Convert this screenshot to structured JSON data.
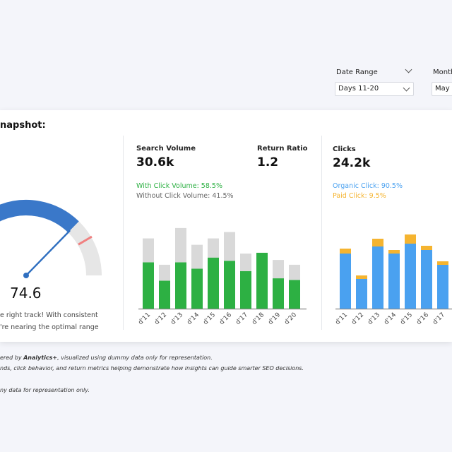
{
  "filters": {
    "date_range_label": "Date Range",
    "date_range_value": "Days 11-20",
    "month_label": "Month",
    "month_value": "May"
  },
  "card": {
    "title": "napshot:"
  },
  "gauge": {
    "value_text": "74.6",
    "value": 74.6,
    "message_line1": "e right track! With consistent",
    "message_line2": "'re nearing the optimal range",
    "colors": {
      "fill": "#3a78c9",
      "track": "#e6e6e6",
      "marker": "#f08080",
      "needle": "#2f6fc0"
    }
  },
  "search": {
    "label": "Search Volume",
    "value": "30.6k",
    "with_click": "With Click Volume: 58.5%",
    "without_click": "Without Click Volume: 41.5%",
    "colors": {
      "with": "#2db043",
      "without": "#d9d9d9"
    }
  },
  "return_ratio": {
    "label": "Return Ratio",
    "value": "1.2"
  },
  "clicks": {
    "label": "Clicks",
    "value": "24.2k",
    "organic": "Organic Click: 90.5%",
    "paid": "Paid Click: 9.5%",
    "colors": {
      "organic": "#4aa1f0",
      "paid": "#f5b430"
    }
  },
  "chart_data": [
    {
      "type": "bar",
      "categories": [
        "d'11",
        "d'12",
        "d'13",
        "d'14",
        "d'15",
        "d'16",
        "d'17",
        "d'18",
        "d'19",
        "d'20"
      ],
      "series": [
        {
          "name": "With Click Volume",
          "values": [
            58,
            35,
            58,
            50,
            64,
            60,
            47,
            70,
            38,
            36
          ]
        },
        {
          "name": "Without Click Volume",
          "values": [
            30,
            20,
            43,
            30,
            24,
            36,
            22,
            0,
            23,
            19
          ]
        }
      ]
    },
    {
      "type": "bar",
      "categories": [
        "d'11",
        "d'12",
        "d'13",
        "d'14",
        "d'15",
        "d'16",
        "d'17"
      ],
      "series": [
        {
          "name": "Organic Click",
          "values": [
            78,
            42,
            88,
            78,
            92,
            83,
            62
          ]
        },
        {
          "name": "Paid Click",
          "values": [
            7,
            5,
            11,
            5,
            13,
            6,
            5
          ]
        }
      ]
    }
  ],
  "footer": {
    "line1_prefix": "ered by ",
    "line1_brand": "Analytics+",
    "line1_suffix": ", visualized using dummy data only for representation.",
    "line2": "nds, click behavior, and return metrics helping demonstrate how insights can guide smarter SEO decisions.",
    "line3": "ny data for representation only."
  }
}
